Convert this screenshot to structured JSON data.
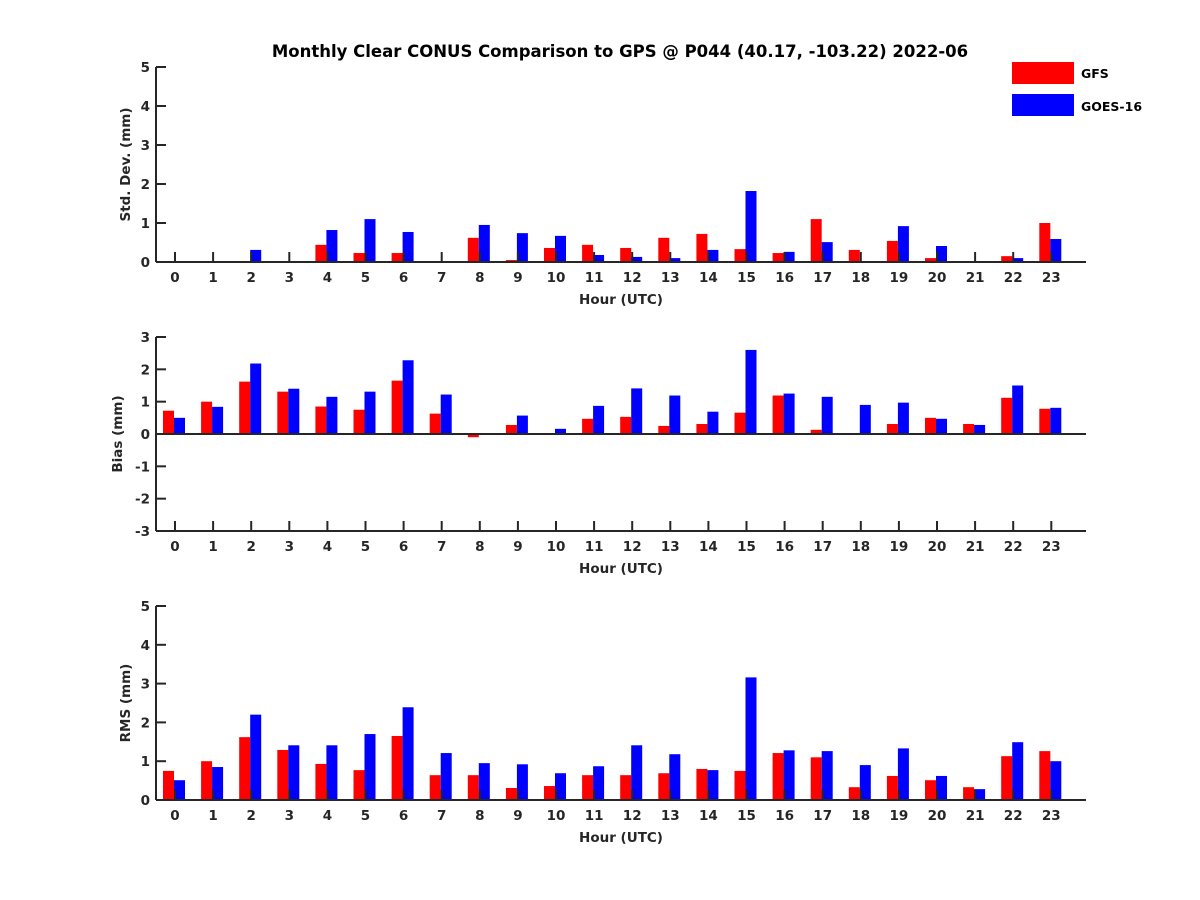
{
  "chart_data": {
    "type": "bar",
    "title": "Monthly Clear CONUS Comparison to GPS @ P044 (40.17, -103.22) 2022-06",
    "legend": {
      "placement": "top-right",
      "entries": [
        {
          "name": "GFS",
          "color": "#ff0000"
        },
        {
          "name": "GOES-16",
          "color": "#0000ff"
        }
      ]
    },
    "categories": [
      "0",
      "1",
      "2",
      "3",
      "4",
      "5",
      "6",
      "7",
      "8",
      "9",
      "10",
      "11",
      "12",
      "13",
      "14",
      "15",
      "16",
      "17",
      "18",
      "19",
      "20",
      "21",
      "22",
      "23"
    ],
    "panels": [
      {
        "id": "std",
        "ylabel": "Std. Dev. (mm)",
        "xlabel": "Hour (UTC)",
        "ylim": [
          0,
          5
        ],
        "yticks": [
          0,
          1,
          2,
          3,
          4,
          5
        ],
        "series": [
          {
            "name": "GFS",
            "color": "#ff0000",
            "values": [
              0,
              0,
              0,
              0,
              0.44,
              0.23,
              0.23,
              0,
              0.62,
              0.05,
              0.36,
              0.44,
              0.36,
              0.62,
              0.72,
              0.33,
              0.23,
              1.1,
              0.31,
              0.54,
              0.1,
              0,
              0.15,
              1.0
            ]
          },
          {
            "name": "GOES-16",
            "color": "#0000ff",
            "values": [
              0,
              0,
              0.31,
              0,
              0.82,
              1.1,
              0.77,
              0,
              0.95,
              0.74,
              0.67,
              0.18,
              0.13,
              0.1,
              0.31,
              1.82,
              0.26,
              0.51,
              0.02,
              0.92,
              0.41,
              0,
              0.1,
              0.59
            ]
          }
        ]
      },
      {
        "id": "bias",
        "ylabel": "Bias (mm)",
        "xlabel": "Hour (UTC)",
        "ylim": [
          -3,
          3
        ],
        "yticks": [
          -3,
          -2,
          -1,
          0,
          1,
          2,
          3
        ],
        "series": [
          {
            "name": "GFS",
            "color": "#ff0000",
            "values": [
              0.72,
              1.0,
              1.62,
              1.31,
              0.85,
              0.75,
              1.65,
              0.63,
              -0.1,
              0.28,
              0,
              0.47,
              0.53,
              0.25,
              0.31,
              0.66,
              1.19,
              0.13,
              0,
              0.31,
              0.5,
              0.31,
              1.12,
              0.78
            ]
          },
          {
            "name": "GOES-16",
            "color": "#0000ff",
            "values": [
              0.5,
              0.84,
              2.18,
              1.4,
              1.15,
              1.31,
              2.28,
              1.22,
              0.03,
              0.57,
              0.16,
              0.87,
              1.41,
              1.19,
              0.69,
              2.6,
              1.25,
              1.15,
              0.9,
              0.97,
              0.47,
              0.28,
              1.5,
              0.81
            ]
          }
        ]
      },
      {
        "id": "rms",
        "ylabel": "RMS (mm)",
        "xlabel": "Hour (UTC)",
        "ylim": [
          0,
          5
        ],
        "yticks": [
          0,
          1,
          2,
          3,
          4,
          5
        ],
        "series": [
          {
            "name": "GFS",
            "color": "#ff0000",
            "values": [
              0.75,
              1.0,
              1.62,
              1.29,
              0.93,
              0.77,
              1.65,
              0.64,
              0.64,
              0.31,
              0.36,
              0.64,
              0.64,
              0.69,
              0.8,
              0.75,
              1.21,
              1.1,
              0.33,
              0.62,
              0.51,
              0.33,
              1.13,
              1.26
            ]
          },
          {
            "name": "GOES-16",
            "color": "#0000ff",
            "values": [
              0.51,
              0.85,
              2.2,
              1.41,
              1.41,
              1.7,
              2.39,
              1.21,
              0.95,
              0.92,
              0.69,
              0.87,
              1.41,
              1.18,
              0.77,
              3.16,
              1.28,
              1.26,
              0.9,
              1.33,
              0.62,
              0.28,
              1.49,
              1.0
            ]
          }
        ]
      }
    ]
  }
}
